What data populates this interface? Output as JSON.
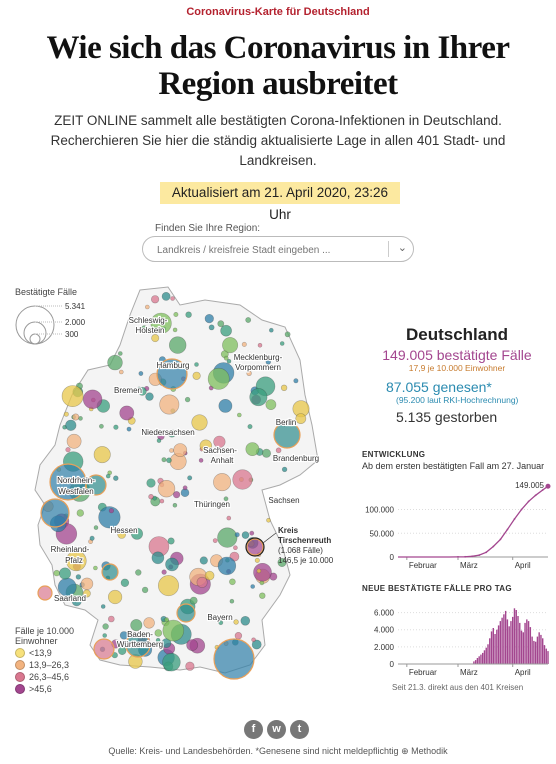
{
  "header": {
    "kicker": "Coronavirus-Karte für Deutschland",
    "headline_line1": "Wie sich das Coronavirus in Ihrer",
    "headline_line2": "Region ausbreitet",
    "intro_line1": "ZEIT ONLINE sammelt alle bestätigten Corona-Infektionen in Deutschland.",
    "intro_line2": "Recherchieren Sie hier die ständig aktualisierte Lage in allen 401 Stadt- und",
    "intro_line3": "Landkreisen.",
    "updated": "Aktualisiert am 21. April 2020, 23:26 Uhr"
  },
  "search": {
    "label": "Finden Sie Ihre Region:",
    "placeholder": "Landkreis / kreisfreie Stadt eingeben ...",
    "chevron_icon": "chevron-down-icon"
  },
  "map": {
    "legend_size_title": "Bestätigte Fälle",
    "legend_sizes": [
      "5.341",
      "2.000",
      "300"
    ],
    "legend_color_title_1": "Fälle je 10.000",
    "legend_color_title_2": "Einwohner",
    "legend_colors": [
      {
        "label": "<13,9",
        "color": "#f7e17b"
      },
      {
        "label": "13,9–26,3",
        "color": "#f2b37f"
      },
      {
        "label": "26,3–45,6",
        "color": "#d9778f"
      },
      {
        "label": ">45,6",
        "color": "#a3468f"
      }
    ],
    "states": [
      "Schleswig-",
      "Holstein",
      "Hamburg",
      "Mecklenburg-",
      "Vorpommern",
      "Bremen",
      "Berlin",
      "Niedersachsen",
      "Sachsen-",
      "Anhalt",
      "Brandenburg",
      "Nordrhein-",
      "Westfalen",
      "Sachsen",
      "Thüringen",
      "Hessen",
      "Rheinland-",
      "Pfalz",
      "Saarland",
      "Bayern",
      "Baden-",
      "Württemberg"
    ],
    "highlight": {
      "name_1": "Kreis",
      "name_2": "Tirschenreuth",
      "cases": "(1.068 Fälle)",
      "rate": "146,5 je 10.000"
    }
  },
  "stats": {
    "country": "Deutschland",
    "confirmed": "149.005 bestätigte Fälle",
    "confirmed_rate": "17,9  je 10.000 Einwohner",
    "recovered": "87.055 genesen*",
    "recovered_note": "(95.200  laut RKI-Hochrechnung)",
    "deaths": "5.135 gestorben",
    "confirmed_color": "#a3468f",
    "recovered_color": "#2b8bb0"
  },
  "chart_data": [
    {
      "type": "line",
      "title": "ENTWICKLUNG",
      "subtitle": "Ab dem ersten bestätigten Fall am 27. Januar",
      "x_tick_labels": [
        "Februar",
        "März",
        "April"
      ],
      "y_tick_labels": [
        "0",
        "50.000",
        "100.000"
      ],
      "ylim": [
        0,
        160000
      ],
      "end_label": "149.005",
      "x": [
        "2020-03-01",
        "2020-03-05",
        "2020-03-09",
        "2020-03-13",
        "2020-03-17",
        "2020-03-21",
        "2020-03-25",
        "2020-03-29",
        "2020-04-02",
        "2020-04-06",
        "2020-04-10",
        "2020-04-14",
        "2020-04-18",
        "2020-04-21"
      ],
      "values": [
        200,
        500,
        1500,
        4000,
        10000,
        22000,
        37000,
        58000,
        80000,
        100000,
        117000,
        130000,
        141000,
        149005
      ],
      "color": "#a3468f"
    },
    {
      "type": "bar",
      "title": "NEUE BESTÄTIGTE FÄLLE PRO TAG",
      "x_tick_labels": [
        "Februar",
        "März",
        "April"
      ],
      "y_tick_labels": [
        "0",
        "2.000",
        "4.000",
        "6.000"
      ],
      "ylim": [
        0,
        7000
      ],
      "note": "Seit 21.3. direkt aus den 401 Kreisen",
      "categories": [
        "03-10",
        "03-11",
        "03-12",
        "03-13",
        "03-14",
        "03-15",
        "03-16",
        "03-17",
        "03-18",
        "03-19",
        "03-20",
        "03-21",
        "03-22",
        "03-23",
        "03-24",
        "03-25",
        "03-26",
        "03-27",
        "03-28",
        "03-29",
        "03-30",
        "03-31",
        "04-01",
        "04-02",
        "04-03",
        "04-04",
        "04-05",
        "04-06",
        "04-07",
        "04-08",
        "04-09",
        "04-10",
        "04-11",
        "04-12",
        "04-13",
        "04-14",
        "04-15",
        "04-16",
        "04-17",
        "04-18",
        "04-19",
        "04-20",
        "04-21"
      ],
      "values": [
        300,
        450,
        700,
        900,
        1100,
        1300,
        1600,
        1900,
        2300,
        3000,
        3800,
        4200,
        3500,
        4000,
        4500,
        5000,
        5400,
        5800,
        6200,
        5200,
        4400,
        5000,
        5500,
        6500,
        6300,
        5600,
        4800,
        3900,
        3700,
        4800,
        5200,
        5000,
        4300,
        3200,
        2700,
        2600,
        3200,
        3700,
        3400,
        3000,
        2200,
        1800,
        1500
      ],
      "color": "#a3468f"
    }
  ],
  "footer": {
    "source": "Quelle: Kreis- und Landesbehörden. *Genesene sind nicht meldepflichtig",
    "method_label": "Methodik",
    "social": [
      "f",
      "w",
      "t"
    ]
  }
}
